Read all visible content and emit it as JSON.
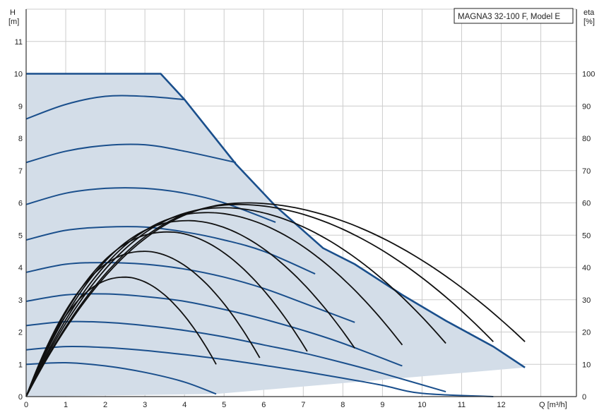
{
  "chart_data": {
    "type": "line",
    "title": "MAGNA3 32-100 F, Model E",
    "left_axis": {
      "label_symbol": "H",
      "label_unit": "[m]",
      "ylim": [
        0,
        12
      ],
      "ticks": [
        0,
        1,
        2,
        3,
        4,
        5,
        6,
        7,
        8,
        9,
        10,
        11
      ]
    },
    "right_axis": {
      "label_symbol": "eta",
      "label_unit": "[%]",
      "ylim": [
        0,
        120
      ],
      "ticks": [
        0,
        10,
        20,
        30,
        40,
        50,
        60,
        70,
        80,
        90,
        100
      ]
    },
    "x_axis": {
      "label": "Q [m³/h]",
      "xlim": [
        0,
        13.9
      ],
      "ticks": [
        0,
        1,
        2,
        3,
        4,
        5,
        6,
        7,
        8,
        9,
        10,
        11,
        12
      ]
    },
    "grid": true,
    "colors": {
      "envelope_fill": "#d3dde8",
      "head_curve": "#1a4f8c",
      "eff_curve": "#111111",
      "grid": "#cccccc"
    },
    "envelope": {
      "points": [
        [
          0,
          10
        ],
        [
          3.4,
          10
        ],
        [
          4.0,
          9.2
        ],
        [
          5.3,
          7.2
        ],
        [
          6.3,
          5.9
        ],
        [
          7.5,
          4.6
        ],
        [
          8.3,
          4.1
        ],
        [
          9.5,
          3.15
        ],
        [
          10.6,
          2.35
        ],
        [
          11.8,
          1.55
        ],
        [
          12.6,
          0.9
        ],
        [
          4.8,
          0.08
        ],
        [
          0,
          0
        ]
      ]
    },
    "head_curves": [
      {
        "x": [
          0,
          1,
          2,
          3,
          4.0
        ],
        "y": [
          8.6,
          9.05,
          9.3,
          9.3,
          9.2
        ]
      },
      {
        "x": [
          0,
          1,
          2,
          3,
          4,
          5.3
        ],
        "y": [
          7.25,
          7.6,
          7.78,
          7.8,
          7.6,
          7.25
        ]
      },
      {
        "x": [
          0,
          1,
          2,
          3,
          4,
          5,
          6.3
        ],
        "y": [
          5.95,
          6.3,
          6.45,
          6.45,
          6.3,
          6.0,
          5.4
        ]
      },
      {
        "x": [
          0,
          1,
          2,
          3,
          4,
          5,
          6,
          7.3
        ],
        "y": [
          4.85,
          5.15,
          5.25,
          5.25,
          5.1,
          4.85,
          4.5,
          3.8
        ]
      },
      {
        "x": [
          0,
          1,
          2,
          3,
          4,
          5,
          6,
          7,
          8.3
        ],
        "y": [
          3.85,
          4.1,
          4.15,
          4.1,
          3.95,
          3.7,
          3.35,
          2.9,
          2.3
        ]
      },
      {
        "x": [
          0,
          1,
          2,
          3,
          4,
          5,
          6,
          7,
          8,
          9.5
        ],
        "y": [
          2.95,
          3.15,
          3.18,
          3.1,
          2.95,
          2.7,
          2.4,
          2.05,
          1.65,
          0.95
        ]
      },
      {
        "x": [
          0,
          1,
          2,
          3,
          4,
          5,
          6,
          7,
          8,
          9,
          10.6
        ],
        "y": [
          2.2,
          2.32,
          2.3,
          2.2,
          2.05,
          1.85,
          1.6,
          1.35,
          1.05,
          0.72,
          0.15
        ]
      },
      {
        "x": [
          0,
          1,
          2,
          3,
          4,
          5,
          6,
          7,
          8,
          9,
          10,
          11.8
        ],
        "y": [
          1.45,
          1.55,
          1.52,
          1.43,
          1.3,
          1.15,
          0.97,
          0.78,
          0.57,
          0.35,
          0.1,
          -0.5
        ]
      },
      {
        "x": [
          0,
          1,
          2,
          3,
          4,
          4.8
        ],
        "y": [
          1.0,
          1.05,
          0.95,
          0.75,
          0.45,
          0.08
        ]
      }
    ],
    "efficiency_curves": [
      {
        "peak_x": 2.5,
        "peak_eta": 37,
        "end_x": 4.8,
        "end_eta": 10
      },
      {
        "peak_x": 3.0,
        "peak_eta": 45,
        "end_x": 5.9,
        "end_eta": 12
      },
      {
        "peak_x": 3.6,
        "peak_eta": 51,
        "end_x": 7.1,
        "end_eta": 14
      },
      {
        "peak_x": 4.1,
        "peak_eta": 54.5,
        "end_x": 8.3,
        "end_eta": 15
      },
      {
        "peak_x": 4.6,
        "peak_eta": 57,
        "end_x": 9.5,
        "end_eta": 16
      },
      {
        "peak_x": 5.0,
        "peak_eta": 58.5,
        "end_x": 10.6,
        "end_eta": 16.5
      },
      {
        "peak_x": 5.4,
        "peak_eta": 59.5,
        "end_x": 11.8,
        "end_eta": 17
      },
      {
        "peak_x": 5.6,
        "peak_eta": 60,
        "end_x": 12.6,
        "end_eta": 17
      }
    ]
  }
}
